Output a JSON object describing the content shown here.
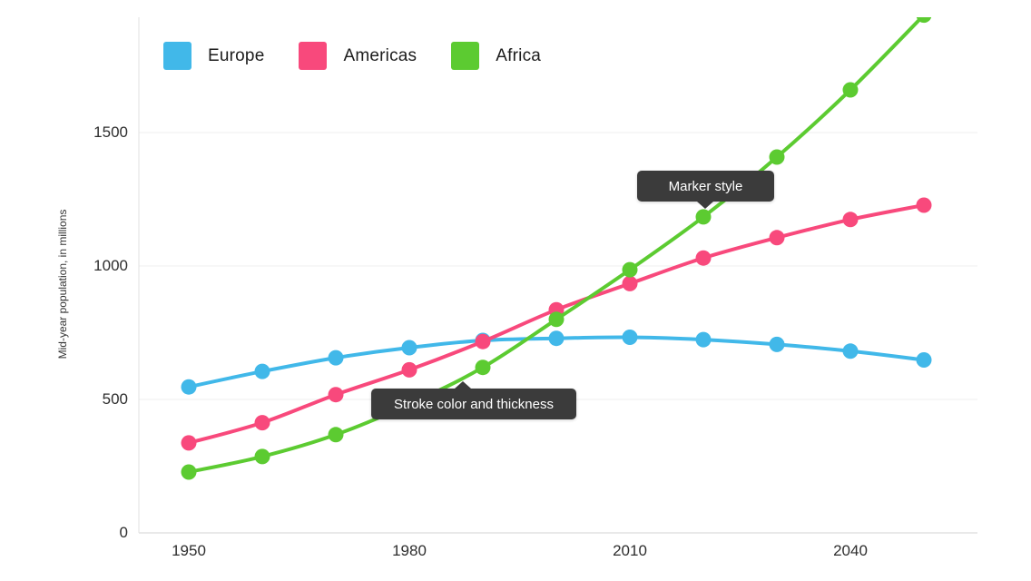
{
  "chart_data": {
    "type": "line",
    "title": "",
    "xlabel": "",
    "ylabel": "Mid-year population, in millions",
    "x": [
      1950,
      1960,
      1970,
      1980,
      1990,
      2000,
      2010,
      2020,
      2030,
      2040,
      2050
    ],
    "series": [
      {
        "name": "Europe",
        "color": "#41B8E9",
        "values": [
          547,
          605,
          656,
          694,
          721,
          729,
          733,
          724,
          706,
          681,
          648
        ]
      },
      {
        "name": "Americas",
        "color": "#F8497C",
        "values": [
          337,
          413,
          518,
          611,
          717,
          836,
          934,
          1030,
          1106,
          1174,
          1228
        ]
      },
      {
        "name": "Africa",
        "color": "#5CCB31",
        "values": [
          228,
          286,
          368,
          482,
          620,
          800,
          986,
          1184,
          1408,
          1660,
          1940
        ]
      }
    ],
    "x_ticks": [
      {
        "value": 1950,
        "label": "1950"
      },
      {
        "value": 1980,
        "label": "1980"
      },
      {
        "value": 2010,
        "label": "2010"
      },
      {
        "value": 2040,
        "label": "2040"
      }
    ],
    "y_ticks": [
      {
        "value": 0,
        "label": "0"
      },
      {
        "value": 500,
        "label": "500"
      },
      {
        "value": 1000,
        "label": "1000"
      },
      {
        "value": 1500,
        "label": "1500"
      }
    ],
    "ylim": [
      0,
      1932
    ],
    "grid": "horizontal",
    "legend_position": "top-left",
    "marker_shape": "circle"
  },
  "annotations": [
    {
      "label": "Stroke color and thickness",
      "target_series": "Africa",
      "target": "line-segment-1980-1990",
      "arrow": "up"
    },
    {
      "label": "Marker style",
      "target_series": "Africa",
      "target": "marker-2020",
      "arrow": "down"
    }
  ],
  "colors": {
    "background": "#ffffff",
    "gridline": "#efefef",
    "axis_line": "#e2e2e2",
    "tick_text": "#2e2e2e",
    "tooltip_bg": "#3b3b3b",
    "tooltip_text": "#ffffff"
  }
}
